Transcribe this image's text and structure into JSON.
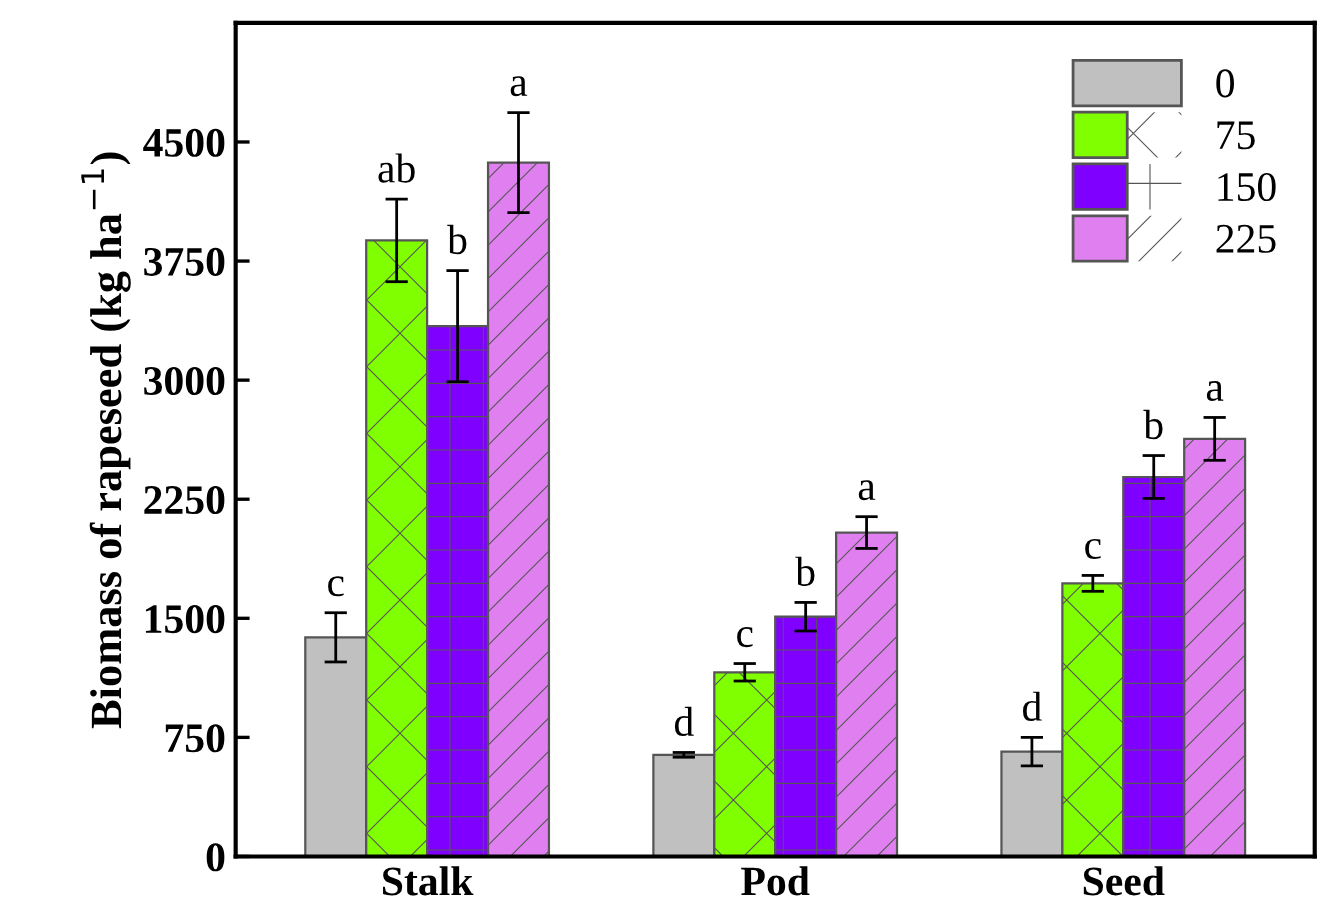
{
  "chart_data": {
    "type": "bar",
    "ylabel": "Biomass of rapeseed (kg ha$^{−1}$)",
    "categories": [
      "Stalk",
      "Pod",
      "Seed"
    ],
    "series": [
      {
        "name": "0",
        "color": "#c0c0c0",
        "values": [
          1380,
          640,
          660
        ],
        "errors": [
          155,
          15,
          90
        ],
        "value_labels": [
          "c",
          "d",
          "d"
        ]
      },
      {
        "name": "75",
        "color": "#80ff00",
        "values": [
          3880,
          1160,
          1720
        ],
        "errors": [
          260,
          55,
          50
        ],
        "value_labels": [
          "ab",
          "c",
          "c"
        ]
      },
      {
        "name": "150",
        "color": "#8000ff",
        "values": [
          3340,
          1510,
          2390
        ],
        "errors": [
          350,
          90,
          135
        ],
        "value_labels": [
          "b",
          "b",
          "b"
        ]
      },
      {
        "name": "225",
        "color": "#e080f0",
        "values": [
          4370,
          2040,
          2630
        ],
        "errors": [
          315,
          100,
          135
        ],
        "value_labels": [
          "a",
          "a",
          "a"
        ]
      }
    ],
    "ylim": [
      0,
      5250
    ],
    "yticks": [
      0,
      750,
      1500,
      2250,
      3000,
      3750,
      4500
    ],
    "legend": "top right",
    "grid": false
  }
}
